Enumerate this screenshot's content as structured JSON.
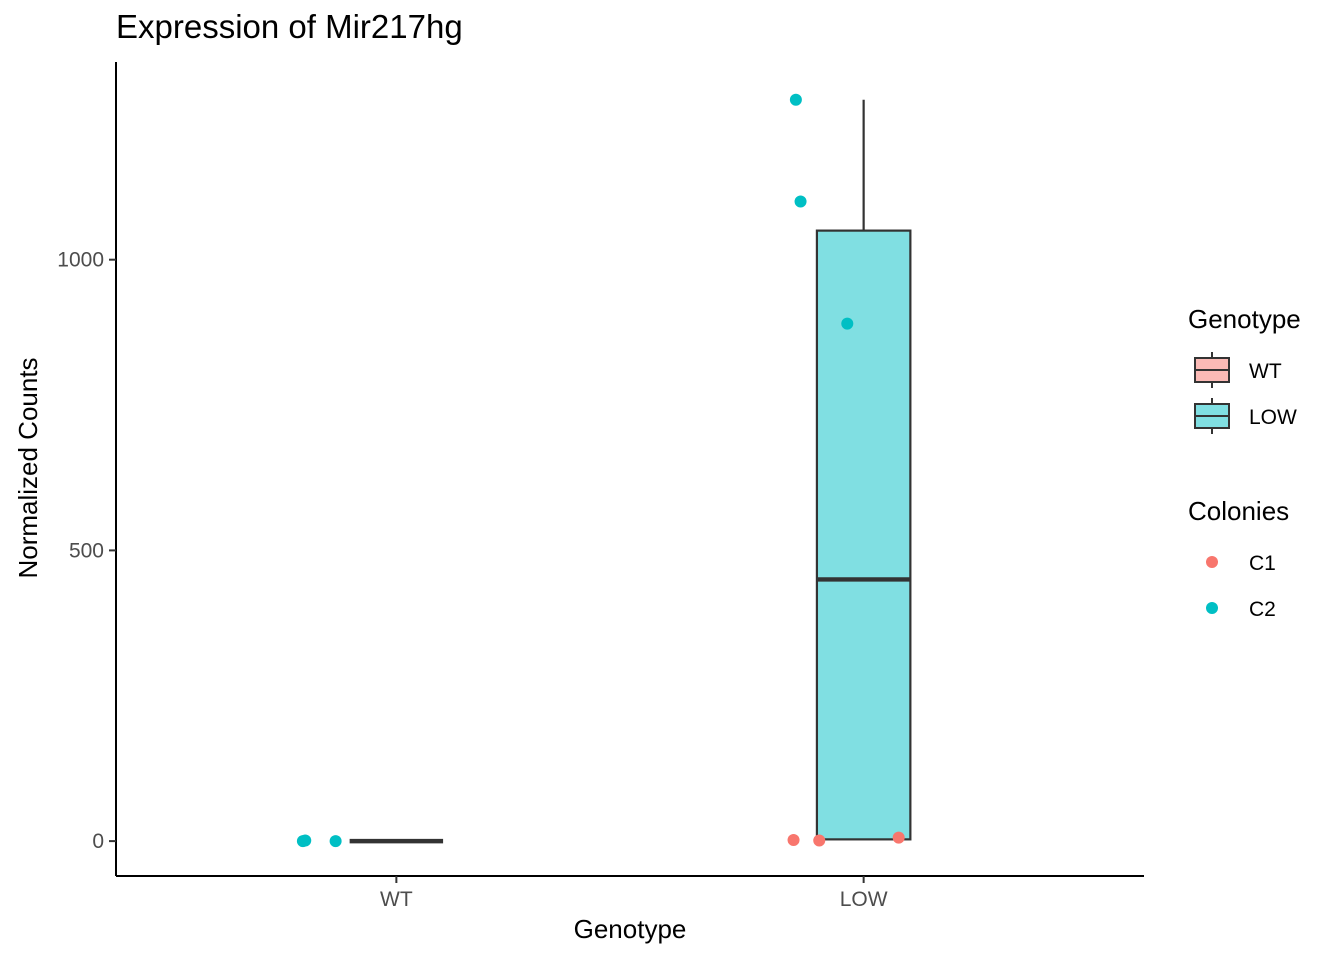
{
  "chart_data": {
    "type": "boxplot",
    "title": "Expression of Mir217hg",
    "xlabel": "Genotype",
    "ylabel": "Normalized Counts",
    "categories": [
      "WT",
      "LOW"
    ],
    "ylim": [
      -60,
      1340
    ],
    "yticks": [
      0,
      500,
      1000
    ],
    "grid": false,
    "legend_position": "right",
    "boxes": [
      {
        "category": "WT",
        "min": 0,
        "q1": 0,
        "median": 0,
        "q3": 0,
        "max": 0,
        "fill": "#F8766D"
      },
      {
        "category": "LOW",
        "min": 3,
        "q1": 3,
        "median": 450,
        "q3": 1050,
        "max": 1275,
        "fill": "#00BFC4"
      }
    ],
    "points": [
      {
        "category": "WT",
        "x": 0.8,
        "y": 0,
        "colony": "C2"
      },
      {
        "category": "WT",
        "x": 0.805,
        "y": 1,
        "colony": "C2"
      },
      {
        "category": "WT",
        "x": 0.87,
        "y": 0,
        "colony": "C2"
      },
      {
        "category": "LOW",
        "x": 1.855,
        "y": 1275,
        "colony": "C2"
      },
      {
        "category": "LOW",
        "x": 1.865,
        "y": 1100,
        "colony": "C2"
      },
      {
        "category": "LOW",
        "x": 1.965,
        "y": 890,
        "colony": "C2"
      },
      {
        "category": "LOW",
        "x": 1.85,
        "y": 2,
        "colony": "C1"
      },
      {
        "category": "LOW",
        "x": 1.905,
        "y": 1,
        "colony": "C1"
      },
      {
        "category": "LOW",
        "x": 2.075,
        "y": 6,
        "colony": "C1"
      }
    ],
    "legend": {
      "genotype_title": "Genotype",
      "genotype_items": [
        {
          "label": "WT",
          "color": "#F8766D"
        },
        {
          "label": "LOW",
          "color": "#00BFC4"
        }
      ],
      "colonies_title": "Colonies",
      "colonies_items": [
        {
          "label": "C1",
          "color": "#F8766D"
        },
        {
          "label": "C2",
          "color": "#00BFC4"
        }
      ]
    }
  }
}
